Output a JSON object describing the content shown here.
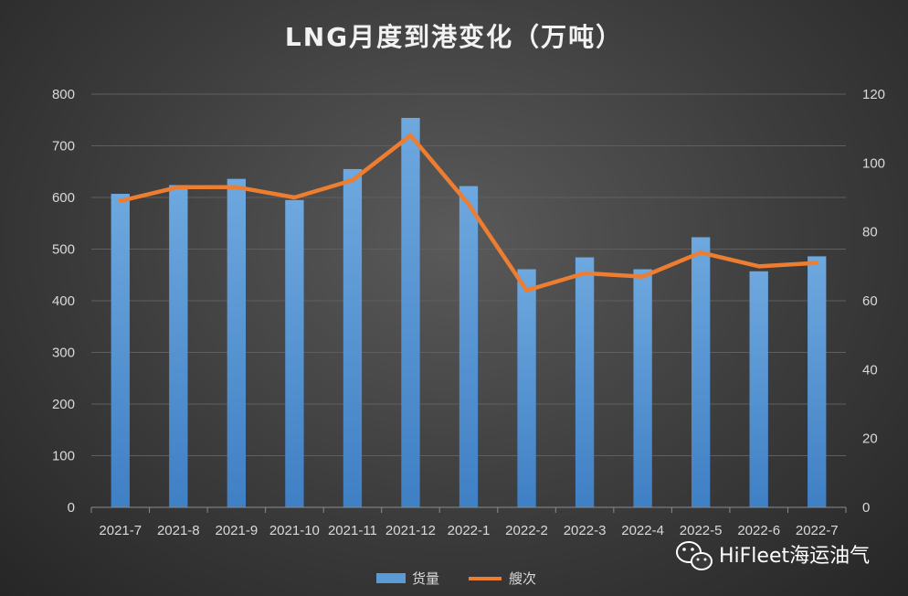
{
  "chart_data": {
    "type": "bar",
    "title": "LNG月度到港变化（万吨）",
    "categories": [
      "2021-7",
      "2021-8",
      "2021-9",
      "2021-10",
      "2021-11",
      "2021-12",
      "2022-1",
      "2022-2",
      "2022-3",
      "2022-4",
      "2022-5",
      "2022-6",
      "2022-7"
    ],
    "series": [
      {
        "name": "货量",
        "type": "bar",
        "axis": "left",
        "color": "#5b9bd5",
        "values": [
          607,
          624,
          636,
          595,
          655,
          754,
          622,
          461,
          484,
          461,
          523,
          457,
          486
        ]
      },
      {
        "name": "艘次",
        "type": "line",
        "axis": "right",
        "color": "#ed7d31",
        "values": [
          89,
          93,
          93,
          90,
          95,
          108,
          88,
          63,
          68,
          67,
          74,
          70,
          71
        ]
      }
    ],
    "ylim": [
      0,
      800
    ],
    "y_ticks": [
      0,
      100,
      200,
      300,
      400,
      500,
      600,
      700,
      800
    ],
    "y2lim": [
      0,
      120
    ],
    "y2_ticks": [
      0,
      20,
      40,
      60,
      80,
      100,
      120
    ],
    "grid": true,
    "legend": "bottom"
  },
  "watermark": {
    "text": "HiFleet海运油气",
    "icon": "wechat-icon"
  }
}
